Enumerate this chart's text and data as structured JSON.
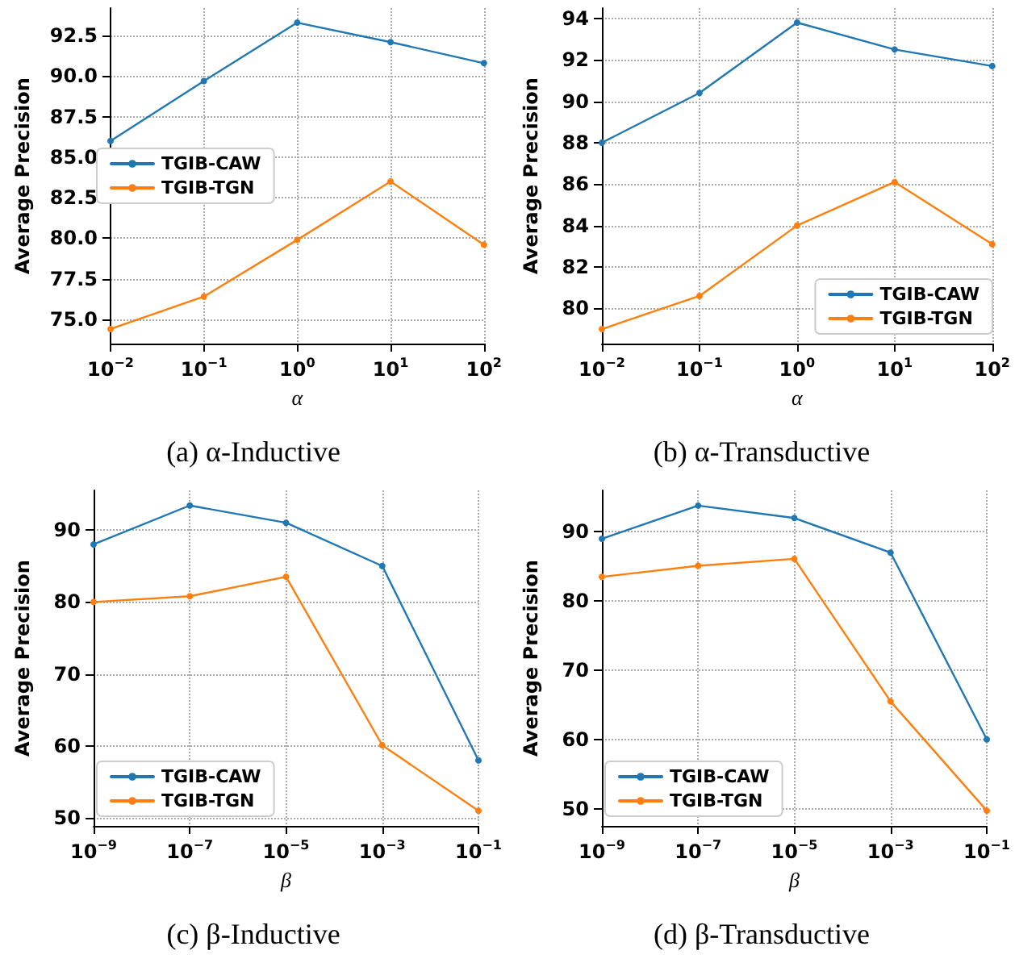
{
  "chart_data": [
    {
      "type": "line",
      "title": "(a) α-Inductive",
      "xlabel": "α",
      "ylabel": "Average Precision",
      "categories": [
        "10$^{−2}$",
        "10$^{−1}$",
        "10$^{0}$",
        "10$^{1}$",
        "10$^{2}$"
      ],
      "series": [
        {
          "name": "TGIB-CAW",
          "color": "#1f77b4",
          "values": [
            86.0,
            89.7,
            93.3,
            92.1,
            90.8
          ]
        },
        {
          "name": "TGIB-TGN",
          "color": "#ff7f0e",
          "values": [
            74.4,
            76.4,
            79.9,
            83.5,
            79.6
          ]
        }
      ],
      "ylim": [
        73.5,
        94.2
      ],
      "yticks": [
        {
          "value": 75,
          "label": "75.0"
        },
        {
          "value": 77.5,
          "label": "77.5"
        },
        {
          "value": 80,
          "label": "80.0"
        },
        {
          "value": 82.5,
          "label": "82.5"
        },
        {
          "value": 85,
          "label": "85.0"
        },
        {
          "value": 87.5,
          "label": "87.5"
        },
        {
          "value": 90,
          "label": "90.0"
        },
        {
          "value": 92.5,
          "label": "92.5"
        }
      ],
      "grid": true,
      "legend": "left",
      "marker": "circle",
      "line_style": "solid"
    },
    {
      "type": "line",
      "title": "(b) α-Transductive",
      "xlabel": "α",
      "ylabel": "Average Precision",
      "categories": [
        "10$^{−2}$",
        "10$^{−1}$",
        "10$^{0}$",
        "10$^{1}$",
        "10$^{2}$"
      ],
      "series": [
        {
          "name": "TGIB-CAW",
          "color": "#1f77b4",
          "values": [
            88.0,
            90.4,
            93.8,
            92.5,
            91.7
          ]
        },
        {
          "name": "TGIB-TGN",
          "color": "#ff7f0e",
          "values": [
            79.0,
            80.6,
            84.0,
            86.1,
            83.1
          ]
        }
      ],
      "ylim": [
        78.3,
        94.5
      ],
      "yticks": [
        80,
        82,
        84,
        86,
        88,
        90,
        92,
        94
      ],
      "grid": true,
      "legend": "bottom right",
      "marker": "circle",
      "line_style": "solid"
    },
    {
      "type": "line",
      "title": "(c) β-Inductive",
      "xlabel": "β",
      "ylabel": "Average Precision",
      "categories": [
        "10$^{−9}$",
        "10$^{−7}$",
        "10$^{−5}$",
        "10$^{−3}$",
        "10$^{−1}$"
      ],
      "series": [
        {
          "name": "TGIB-CAW",
          "color": "#1f77b4",
          "values": [
            88,
            93.4,
            91,
            85,
            58
          ]
        },
        {
          "name": "TGIB-TGN",
          "color": "#ff7f0e",
          "values": [
            80,
            80.8,
            83.5,
            60.1,
            51
          ]
        }
      ],
      "ylim": [
        48.9,
        95.5
      ],
      "yticks": [
        50,
        60,
        70,
        80,
        90
      ],
      "grid": true,
      "legend": "bottom left",
      "marker": "circle",
      "line_style": "solid"
    },
    {
      "type": "line",
      "title": "(d) β-Transductive",
      "xlabel": "β",
      "ylabel": "Average Precision",
      "categories": [
        "10$^{−9}$",
        "10$^{−7}$",
        "10$^{−5}$",
        "10$^{−3}$",
        "10$^{−1}$"
      ],
      "series": [
        {
          "name": "TGIB-CAW",
          "color": "#1f77b4",
          "values": [
            89,
            93.8,
            92,
            87,
            60
          ]
        },
        {
          "name": "TGIB-TGN",
          "color": "#ff7f0e",
          "values": [
            83.5,
            85.1,
            86.1,
            65.5,
            49.7
          ]
        }
      ],
      "ylim": [
        47.5,
        96
      ],
      "yticks": [
        50,
        60,
        70,
        80,
        90
      ],
      "grid": true,
      "legend": "bottom left",
      "marker": "circle",
      "line_style": "solid"
    }
  ]
}
